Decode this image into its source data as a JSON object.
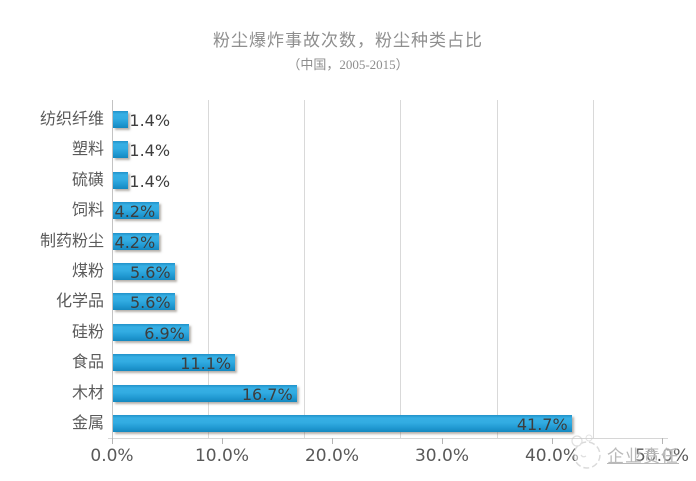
{
  "chart_data": {
    "type": "bar",
    "orientation": "horizontal",
    "title": "粉尘爆炸事故次数，粉尘种类占比",
    "subtitle": "（中国，2005-2015）",
    "categories": [
      "纺织纤维",
      "塑料",
      "硫磺",
      "饲料",
      "制药粉尘",
      "煤粉",
      "化学品",
      "硅粉",
      "食品",
      "木材",
      "金属"
    ],
    "values": [
      1.4,
      1.4,
      1.4,
      4.2,
      4.2,
      5.6,
      5.6,
      6.9,
      11.1,
      16.7,
      41.7
    ],
    "value_labels": [
      "1.4%",
      "1.4%",
      "1.4%",
      "4.2%",
      "4.2%",
      "5.6%",
      "5.6%",
      "6.9%",
      "11.1%",
      "16.7%",
      "41.7%"
    ],
    "x_ticks": [
      "0.0%",
      "10.0%",
      "20.0%",
      "30.0%",
      "40.0%",
      "50.0%"
    ],
    "xlim": [
      0,
      50
    ],
    "grid": true,
    "legend": "none",
    "bar_color": "#1f9ad4",
    "label_color": "#3d3d3d",
    "axis_text_color": "#595959",
    "title_color": "#8e8e8e"
  },
  "watermark": {
    "text": "企业责任",
    "icon": "doodle-face-logo"
  }
}
